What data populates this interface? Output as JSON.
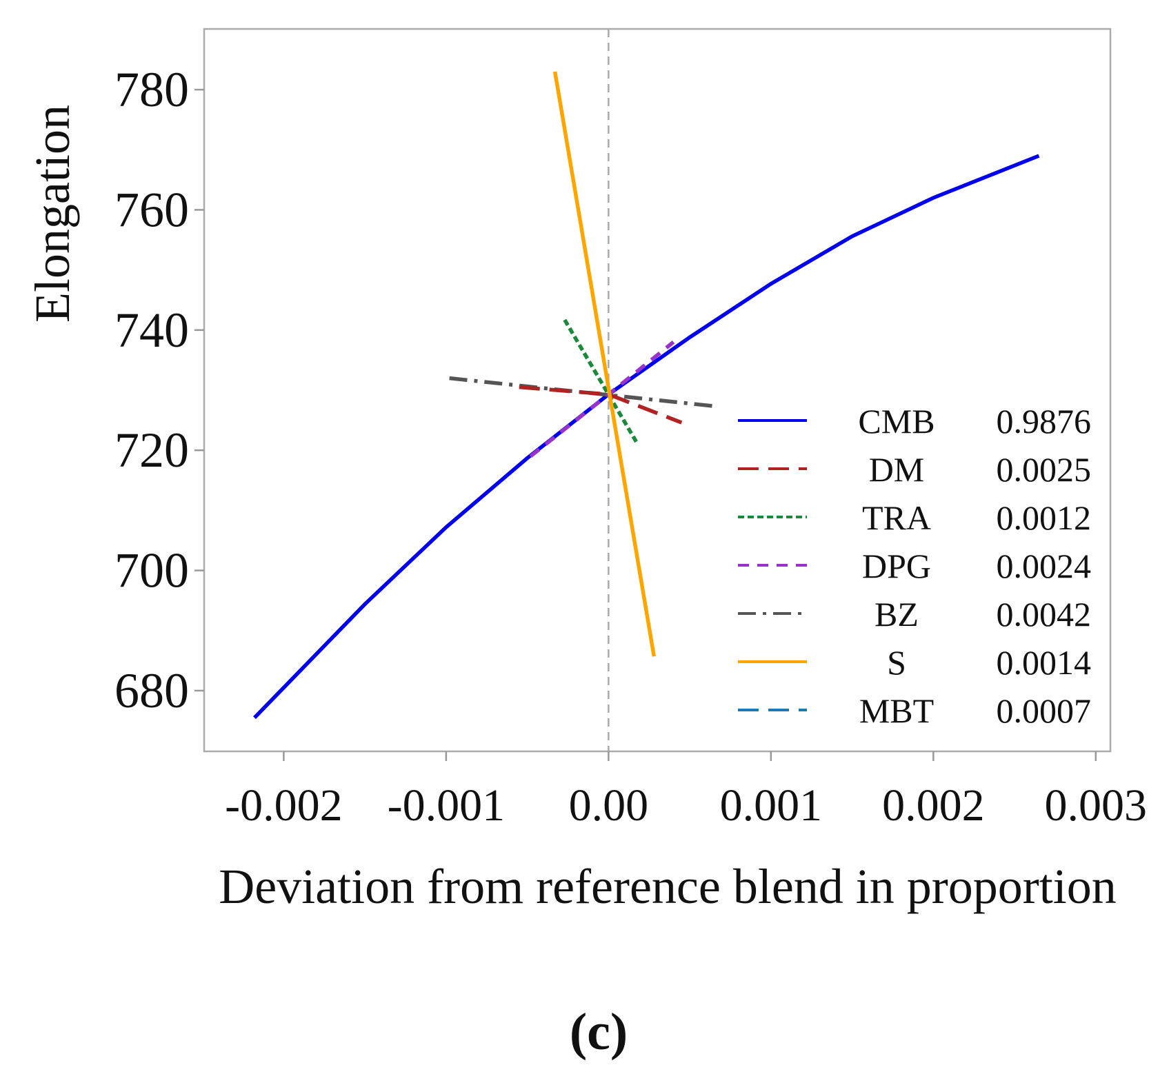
{
  "chart_data": {
    "type": "line",
    "title": "",
    "xlabel": "Deviation from reference blend in proportion",
    "ylabel": "Elongation",
    "caption": "(c)",
    "xlim": [
      -0.00249,
      0.00309
    ],
    "ylim": [
      669.9,
      790.1
    ],
    "x_ticks": [
      -0.002,
      -0.001,
      0.0,
      0.001,
      0.002,
      0.003
    ],
    "x_tick_labels": [
      "-0.002",
      "-0.001",
      "0.00",
      "0.001",
      "0.002",
      "0.003"
    ],
    "y_ticks": [
      680,
      700,
      720,
      740,
      760,
      780
    ],
    "y_tick_labels": [
      "680",
      "700",
      "720",
      "740",
      "760",
      "780"
    ],
    "reference_line_x": 0.0,
    "grid": false,
    "legend_position": "right",
    "series": [
      {
        "name": "CMB",
        "value": "0.9876",
        "color": "#0000ee",
        "dash": "solid",
        "x": [
          -0.00218,
          -0.0015,
          -0.001,
          -0.0005,
          0.0,
          0.0005,
          0.001,
          0.0015,
          0.002,
          0.00265
        ],
        "y": [
          675.5,
          694.4,
          707.2,
          718.7,
          729.3,
          738.8,
          747.7,
          755.6,
          762.0,
          769.0
        ]
      },
      {
        "name": "DM",
        "value": "0.0025",
        "color": "#b22222",
        "dash": "dashed",
        "x": [
          -0.00055,
          0.0,
          0.00045
        ],
        "y": [
          730.5,
          729.3,
          724.6
        ]
      },
      {
        "name": "TRA",
        "value": "0.0012",
        "color": "#1a8a3a",
        "dash": "dotted",
        "x": [
          -0.00027,
          0.00018
        ],
        "y": [
          741.7,
          721.0
        ]
      },
      {
        "name": "DPG",
        "value": "0.0024",
        "color": "#9932cc",
        "dash": "dashed-short",
        "x": [
          -0.00048,
          0.0,
          0.0004
        ],
        "y": [
          719.0,
          729.3,
          738.0
        ]
      },
      {
        "name": "BZ",
        "value": "0.0042",
        "color": "#555555",
        "dash": "dashdot",
        "x": [
          -0.00098,
          0.0007
        ],
        "y": [
          732.0,
          727.2
        ]
      },
      {
        "name": "S",
        "value": "0.0014",
        "color": "#ffa500",
        "dash": "solid",
        "x": [
          -0.00033,
          0.00028
        ],
        "y": [
          783.0,
          685.7
        ]
      },
      {
        "name": "MBT",
        "value": "0.0007",
        "color": "#1f77b4",
        "dash": "dashed",
        "x": [],
        "y": []
      }
    ]
  }
}
